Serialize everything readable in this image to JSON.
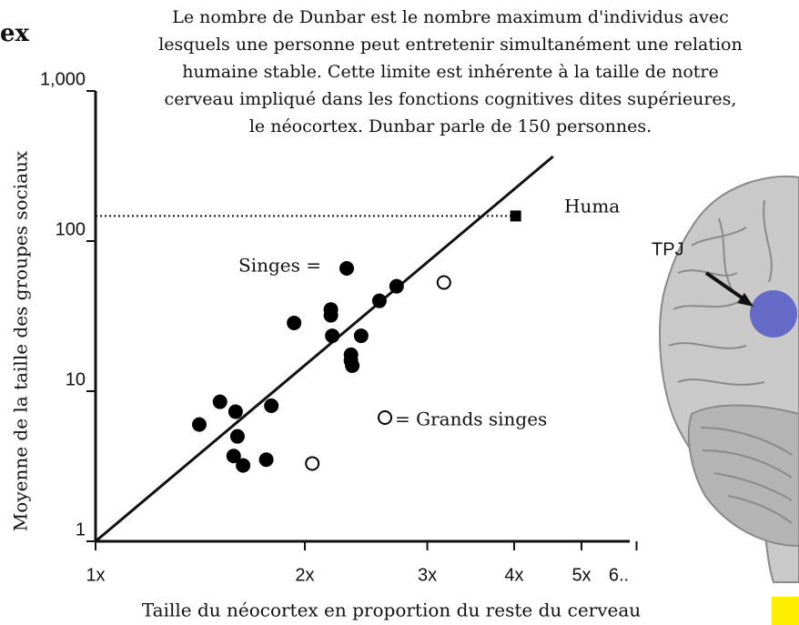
{
  "chart_data": {
    "type": "scatter",
    "title": "ex",
    "description": [
      "Le nombre de Dunbar est le nombre maximum d'individus avec",
      "lesquels une personne peut entretenir simultanément une relation",
      "humaine stable. Cette limite est inhérente à la taille de notre",
      "cerveau impliqué dans les fonctions cognitives dites supérieures,",
      "le néocortex. Dunbar parle de 150 personnes."
    ],
    "x_label": "Taille du néocortex en proportion du reste du cerveau",
    "y_label": "Moyenne de la taille des groupes sociaux",
    "log_x": true,
    "log_y": true,
    "xlim": [
      1,
      6
    ],
    "ylim": [
      1,
      1000
    ],
    "xticks": [
      {
        "value": 1,
        "label": "1x"
      },
      {
        "value": 2,
        "label": "2x"
      },
      {
        "value": 3,
        "label": "3x"
      },
      {
        "value": 4,
        "label": "4x"
      },
      {
        "value": 5,
        "label": "5x"
      },
      {
        "value": 6,
        "label": "6.."
      }
    ],
    "yticks": [
      1,
      10,
      100,
      {
        "value": 1000,
        "label": "1,000"
      }
    ],
    "series": [
      {
        "name": "Singes =",
        "color": "#000000",
        "marker": "filled",
        "x": [
          1.41,
          1.51,
          1.59,
          1.6,
          1.58,
          1.63,
          1.76,
          1.79,
          1.93,
          2.18,
          2.18,
          2.19,
          2.33,
          2.33,
          2.34,
          2.41,
          2.56,
          2.71
        ],
        "values": [
          6,
          8.5,
          7.3,
          5,
          3.7,
          3.2,
          3.5,
          8,
          28.5,
          35,
          32,
          23.4,
          17.5,
          16,
          14.8,
          23.4,
          40,
          50
        ]
      },
      {
        "name": "= Grands singes",
        "color": "#000000",
        "marker": "open",
        "x": [
          3.17,
          2.05
        ],
        "values": [
          53,
          3.3
        ]
      },
      {
        "name": "Huma",
        "color": "#000000",
        "marker": "square",
        "x": [
          4.02
        ],
        "values": [
          147
        ]
      }
    ],
    "fit": {
      "x": [
        1,
        4.55
      ],
      "y": [
        1,
        366
      ]
    },
    "annotation": "TPJ"
  }
}
